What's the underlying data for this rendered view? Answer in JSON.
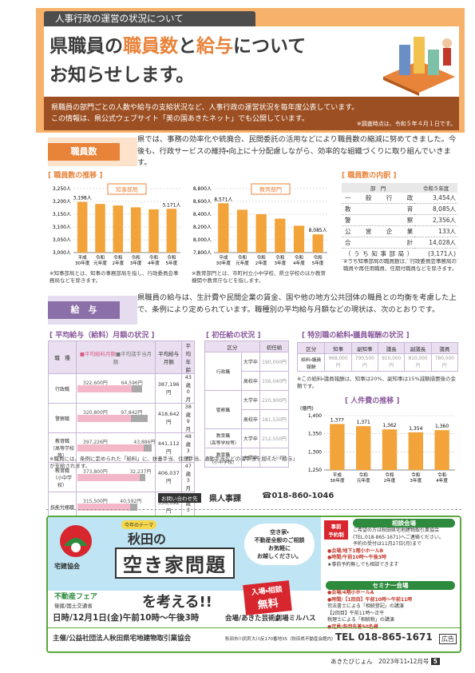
{
  "header": {
    "tab": "人事行政の運営の状況について",
    "title_parts": [
      "県職員の",
      "職員数",
      "と",
      "給与",
      "について"
    ],
    "title_line2": "お知らせします。",
    "intro": [
      "県職員の部門ごとの人数や給与の支給状況など、人事行政の運営状況を毎年度公表しています。",
      "この情報は、県公式ウェブサイト「美の国あきたネット」でも公開しています。"
    ],
    "note": "※調査時点は、令和５年４月１日です。"
  },
  "staff": {
    "label": "職員数",
    "text": "県では、事務の効率化や統廃合、民間委託の活用などにより職員数の縮減に努めてきました。今後も、行政サービスの維持・向上に十分配慮しながら、効率的な組織づくりに取り組んでいきます。",
    "trend_title": "[ 職員数の推移 ]",
    "breakdown": {
      "title": "[ 職員数の内訳 ]",
      "header": [
        "部　門",
        "令和５年度"
      ],
      "rows": [
        [
          "一般行政",
          "3,454人"
        ],
        [
          "教　　育",
          "8,085人"
        ],
        [
          "警　　察",
          "2,356人"
        ],
        [
          "公営企業",
          "133人"
        ],
        [
          "合　　計",
          "14,028人"
        ],
        [
          "（うち知事部局）",
          "(3,171人)"
        ]
      ],
      "note": "※うち知事部局の職員数は、行政委員会事務局の職員や再任用職員、任期付職員などを除きます。"
    }
  },
  "chart_data": [
    {
      "type": "bar",
      "legend": "知事部局",
      "color": "#f2a33a",
      "categories": [
        [
          "平成",
          "30年度"
        ],
        [
          "令和",
          "元年度"
        ],
        [
          "令和",
          "2年度"
        ],
        [
          "令和",
          "3年度"
        ],
        [
          "令和",
          "4年度"
        ],
        [
          "令和",
          "5年度"
        ]
      ],
      "values": [
        3198,
        3190,
        3184,
        3177,
        3169,
        3171
      ],
      "value_labels": [
        "3,198人",
        null,
        null,
        null,
        null,
        "3,171人"
      ],
      "ylim": [
        3000,
        3250
      ],
      "yticks": [
        {
          "value": 3000,
          "label": "3,000人"
        },
        {
          "value": 3050,
          "label": "3,050人"
        },
        {
          "value": 3100,
          "label": "3,100人"
        },
        {
          "value": 3150,
          "label": "3,150人"
        },
        {
          "value": 3200,
          "label": "3,200人"
        },
        {
          "value": 3250,
          "label": "3,250人"
        }
      ],
      "grid": true,
      "note": "※知事部局とは、知事の事務部局を指し、行政委員会事務局などを除きます。"
    },
    {
      "type": "bar",
      "legend": "教育部門",
      "color": "#f2a33a",
      "categories": [
        [
          "平成",
          "30年度"
        ],
        [
          "令和",
          "元年度"
        ],
        [
          "令和",
          "2年度"
        ],
        [
          "令和",
          "3年度"
        ],
        [
          "令和",
          "4年度"
        ],
        [
          "令和",
          "5年度"
        ]
      ],
      "values": [
        8571,
        8470,
        8400,
        8330,
        8220,
        8085
      ],
      "value_labels": [
        "8,571人",
        null,
        null,
        null,
        null,
        "8,085人"
      ],
      "ylim": [
        7800,
        8800
      ],
      "yticks": [
        {
          "value": 7800,
          "label": "7,800人"
        },
        {
          "value": 8000,
          "label": "8,000人"
        },
        {
          "value": 8200,
          "label": "8,200人"
        },
        {
          "value": 8400,
          "label": "8,400人"
        },
        {
          "value": 8600,
          "label": "8,600人"
        },
        {
          "value": 8800,
          "label": "8,800人"
        }
      ],
      "grid": true,
      "note": "※教育部門とは、市町村立小中学校、県立学校のほか教育機関や教育庁などを指します。"
    },
    {
      "type": "bar",
      "title": "[ 人件費の推移 ]",
      "ylabel": "(億円)",
      "color": "#f2a33a",
      "categories": [
        [
          "平成",
          "30年度"
        ],
        [
          "令和",
          "元年度"
        ],
        [
          "令和",
          "2年度"
        ],
        [
          "令和",
          "3年度"
        ],
        [
          "令和",
          "4年度"
        ]
      ],
      "values": [
        1377,
        1371,
        1362,
        1354,
        1360
      ],
      "value_labels": [
        "1,377",
        "1,371",
        "1,362",
        "1,354",
        "1,360"
      ],
      "ylim": [
        1250,
        1400
      ],
      "yticks": [
        {
          "value": 1250,
          "label": "1,250"
        },
        {
          "value": 1300,
          "label": "1,300"
        },
        {
          "value": 1350,
          "label": "1,350"
        },
        {
          "value": 1400,
          "label": "1,400"
        }
      ],
      "grid": true
    }
  ],
  "salary": {
    "label": "給　与",
    "text": "県職員の給与は、生計費や民間企業の賃金、国や他の地方公共団体の職員との均衡を考慮した上で、条例により定められています。職種別の平均給与月額などの現状は、次のとおりです。",
    "average": {
      "title": "[ 平均給与（給料）月額の状況 ]",
      "header": [
        "職　種",
        "■平均給料月額",
        "■平均諸手当月額",
        "平均給与月額",
        "平均年齢"
      ],
      "rows": [
        {
          "job": [
            "行政職"
          ],
          "base": 322600,
          "base_label": "322,600円",
          "allowance": 64596,
          "allowance_label": "64,596円",
          "total": "387,196円",
          "age": [
            "43歳",
            "0月"
          ]
        },
        {
          "job": [
            "警察職"
          ],
          "base": 320800,
          "base_label": "320,800円",
          "allowance": 97842,
          "allowance_label": "97,842円",
          "total": "418,642円",
          "age": [
            "38歳",
            "9月"
          ]
        },
        {
          "job": [
            "教育職",
            "（高等学校等）"
          ],
          "base": 397226,
          "base_label": "397,226円",
          "allowance": 43886,
          "allowance_label": "43,886円",
          "total": "441,112円",
          "age": [
            "48歳",
            "3月"
          ]
        },
        {
          "job": [
            "教育職",
            "（小中学校）"
          ],
          "base": 373800,
          "base_label": "373,800円",
          "allowance": 32237,
          "allowance_label": "32,237円",
          "total": "406,037円",
          "age": [
            "47歳",
            "3月"
          ]
        },
        {
          "job": [
            "技能労務職"
          ],
          "base": 315500,
          "base_label": "315,500円",
          "allowance": 40592,
          "allowance_label": "40,592円",
          "total": "356,092円",
          "age": [
            "54歳",
            "3月"
          ]
        }
      ],
      "note": "※職員には、条例に定められた「給料」に、扶養手当、住居手当、通勤手当などの諸手当を加えた「給与」が支給されます。"
    },
    "starting": {
      "title": "[ 初任給の状況 ]",
      "header": [
        "区分",
        "初任給"
      ],
      "groups": [
        {
          "job": [
            "行政職"
          ],
          "rows": [
            [
              "大学卒",
              "190,000円"
            ],
            [
              "高校卒",
              "156,040円"
            ]
          ]
        },
        {
          "job": [
            "警察職"
          ],
          "rows": [
            [
              "大学卒",
              "220,900円"
            ],
            [
              "高校卒",
              "181,530円"
            ]
          ]
        },
        {
          "job": [
            "教育職",
            "（高等学校等）"
          ],
          "rows": [
            [
              "大学卒",
              "212,550円"
            ]
          ]
        },
        {
          "job": [
            "教育職",
            "（小中学校）"
          ],
          "rows": [
            [
              "大学卒",
              "212,550円"
            ]
          ]
        }
      ]
    },
    "special": {
      "title": "[ 特別職の給料・議員報酬の状況 ]",
      "header": [
        "区分",
        "知事",
        "副知事",
        "議長",
        "副議長",
        "議員"
      ],
      "row": [
        "給料・議員報酬",
        "968,000円",
        "790,500円",
        "910,000円",
        "810,000円",
        "780,000円"
      ],
      "note": "※この給料・議員報酬は、知事は20%、副知事は15%減額措置後の金額です。"
    }
  },
  "contact": {
    "label": "お問い合わせ先",
    "dept": "県人事課",
    "tel": "☎018-860-1046"
  },
  "ad": {
    "org": "宅建協会",
    "theme": "今年のテーマ",
    "title1": "秋田の",
    "title2": "空き家問題",
    "title3": "を考える!!",
    "bubble": [
      "空き家・",
      "不動産全般のご相談",
      "お気軽に",
      "お越しください。"
    ],
    "free": [
      "入場・相談",
      "無料"
    ],
    "fair": "不動産フェア",
    "support": "後援/国土交通省",
    "date": "日時/12月1日(金)午前10時～午後3時",
    "venue": "会場/あきた芸術劇場ミルハス",
    "consult": {
      "badge": [
        "事前",
        "予約制"
      ],
      "title": "相談会場",
      "lines": [
        "ご希望の方は秋田県宅地建物取引業協会",
        "(TEL.018-865-1671)へご連絡ください。",
        "予約の受付は11月27日(月)まで",
        "●会場/地下1階小ホールB",
        "●時間/午前10時～午後3時",
        "★事前予約無しでも相談できます"
      ]
    },
    "seminar": {
      "title": "セミナー会場",
      "lines": [
        "●会場/4階小ホールA",
        "●時間/【1回目】午前10時～午前11時",
        "司法書士による「相続登記」の講演",
        "【2回目】午前11時～正午",
        "税理士による「相続税」の講演",
        "●定員/各回先着50名様"
      ]
    },
    "host": "主催/公益社団法人秋田県宅地建物取引業協会",
    "address": "秋田市川尻町大川反170番地35（秋田県不動産会館内）",
    "tel": "TEL 018-865-1671",
    "tag": "広告"
  },
  "footer": {
    "magazine": "あきたびじょん",
    "issue": "2023年11・12月号",
    "page": "5"
  }
}
